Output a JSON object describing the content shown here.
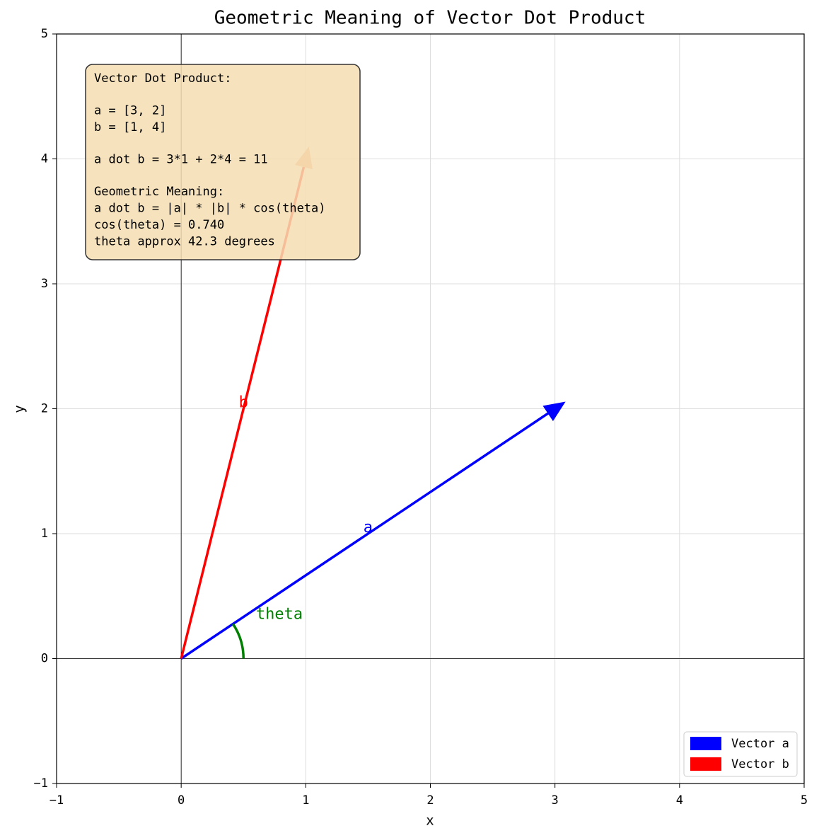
{
  "chart_data": {
    "type": "vector",
    "title": "Geometric Meaning of Vector Dot Product",
    "xlabel": "x",
    "ylabel": "y",
    "xlim": [
      -1,
      5
    ],
    "ylim": [
      -1,
      5
    ],
    "xticks": [
      {
        "value": -1,
        "label": "−1"
      },
      0,
      1,
      2,
      3,
      4,
      5
    ],
    "yticks": [
      {
        "value": -1,
        "label": "−1"
      },
      0,
      1,
      2,
      3,
      4,
      5
    ],
    "grid": true,
    "legend": "lower right",
    "vectors": [
      {
        "name": "Vector a",
        "label": "a",
        "color": "#0000ff",
        "head_color": "#0000ff",
        "x": 3,
        "y": 2
      },
      {
        "name": "Vector b",
        "label": "b",
        "color": "#ff0000",
        "head_color": "#f4a582",
        "x": 1,
        "y": 4
      }
    ],
    "angle_label": "theta",
    "angle_color": "#008000",
    "info_box": [
      [
        "Vector Dot Product:"
      ],
      [
        "a = [3, 2]",
        "b = [1, 4]"
      ],
      [
        "a dot b = 3*1 + 2*4 = 11"
      ],
      [
        "Geometric Meaning:",
        "a dot b = |a| * |b| * cos(theta)",
        "cos(theta) = 0.740",
        "theta approx 42.3 degrees"
      ]
    ]
  }
}
